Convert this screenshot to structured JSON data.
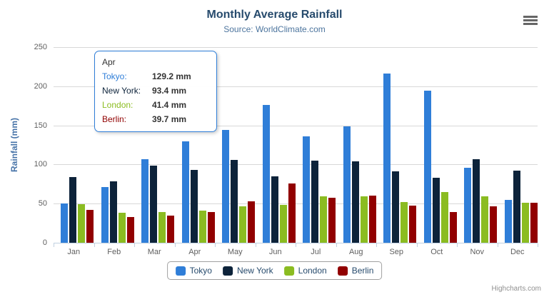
{
  "credit": "Highcharts.com",
  "icons": {
    "menu": "hamburger-icon"
  },
  "colors": {
    "title": "#274b6d",
    "subtitle": "#4d759e",
    "axis_title": "#4572a7",
    "tick_labels": "#606060",
    "axis_line": "#c0d0e0",
    "gridline": "#d8d8d8",
    "legend_border": "#a0a0a0",
    "credit_text": "#909090",
    "tooltip_border": "#2f7ed8"
  },
  "chart_data": {
    "type": "bar",
    "title": "Monthly Average Rainfall",
    "subtitle": "Source: WorldClimate.com",
    "categories": [
      "Jan",
      "Feb",
      "Mar",
      "Apr",
      "May",
      "Jun",
      "Jul",
      "Aug",
      "Sep",
      "Oct",
      "Nov",
      "Dec"
    ],
    "series": [
      {
        "name": "Tokyo",
        "color": "#2f7ed8",
        "values": [
          49.9,
          71.5,
          106.4,
          129.2,
          144.0,
          176.0,
          135.6,
          148.5,
          216.4,
          194.1,
          95.6,
          54.4
        ]
      },
      {
        "name": "New York",
        "color": "#0d233a",
        "values": [
          83.6,
          78.8,
          98.5,
          93.4,
          106.0,
          84.5,
          105.0,
          104.3,
          91.2,
          83.5,
          106.6,
          92.3
        ]
      },
      {
        "name": "London",
        "color": "#8bbc21",
        "values": [
          48.9,
          38.8,
          39.3,
          41.4,
          47.0,
          48.3,
          59.0,
          59.6,
          52.4,
          65.2,
          59.3,
          51.2
        ]
      },
      {
        "name": "Berlin",
        "color": "#910000",
        "values": [
          42.4,
          33.2,
          34.5,
          39.7,
          52.6,
          75.5,
          57.4,
          60.4,
          47.6,
          39.1,
          46.8,
          51.1
        ]
      }
    ],
    "xlabel": "",
    "ylabel": "Rainfall (mm)",
    "ylim": [
      0,
      250
    ],
    "ytick_step": 50,
    "grid": true,
    "legend_position": "bottom"
  },
  "tooltip": {
    "category": "Apr",
    "rows": [
      {
        "label": "Tokyo",
        "value": "129.2 mm"
      },
      {
        "label": "New York",
        "value": "93.4 mm"
      },
      {
        "label": "London",
        "value": "41.4 mm"
      },
      {
        "label": "Berlin",
        "value": "39.7 mm"
      }
    ]
  }
}
